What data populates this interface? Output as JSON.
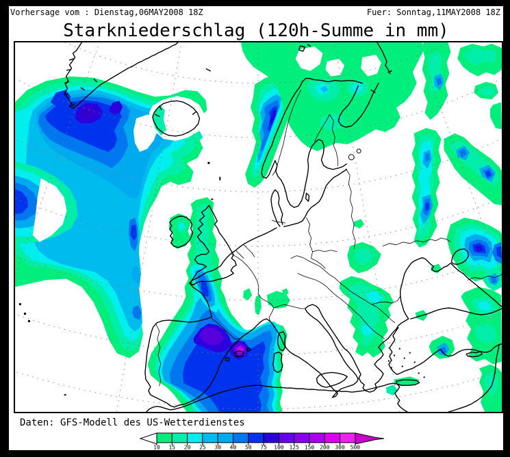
{
  "header": {
    "left": "Vorhersage vom : Dienstag,06MAY2008 18Z",
    "right": "Fuer: Sonntag,11MAY2008 18Z"
  },
  "title": "Starkniederschlag (120h-Summe in mm)",
  "footer": {
    "source": "Daten: GFS-Modell des US-Wetterdienstes"
  },
  "legend": {
    "unit": "mm",
    "labels": [
      "10",
      "15",
      "20",
      "25",
      "30",
      "40",
      "50",
      "75",
      "100",
      "125",
      "150",
      "200",
      "300",
      "500"
    ],
    "colors": [
      "#00EE7C",
      "#00EEAA",
      "#00EEEE",
      "#00BBEE",
      "#00AAEE",
      "#0077EE",
      "#0033EE",
      "#2B00DD",
      "#6600EE",
      "#8800EE",
      "#AA00EE",
      "#DD00EE",
      "#EE22EE"
    ],
    "overflow_color": "#CC00CC",
    "underflow_color": "#FFFFFF"
  },
  "map_features": {
    "type": "filled-contour precipitation map, polar stereographic view of Europe and North Atlantic",
    "maxima": [
      {
        "area": "south of Greenland / Irminger Sea",
        "approx_mm": "100+"
      },
      {
        "area": "northern Spain / Pyrenees",
        "approx_mm": "100+"
      },
      {
        "area": "Catalonia / Balearic Sea",
        "approx_mm": "200+"
      },
      {
        "area": "Norwegian coast",
        "approx_mm": "75"
      },
      {
        "area": "Black Sea / Caucasus",
        "approx_mm": "75"
      },
      {
        "area": "Ukraine bands",
        "approx_mm": "50"
      }
    ]
  }
}
